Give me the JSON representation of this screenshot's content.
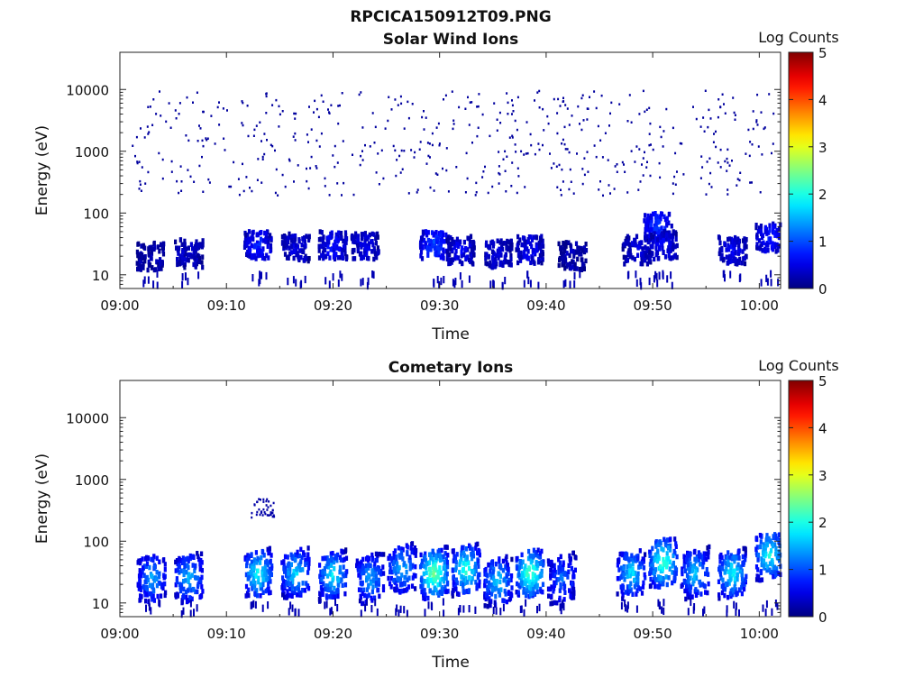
{
  "title": "RPCICA150912T09.PNG",
  "colorbar": {
    "label": "Log Counts",
    "ticks": [
      "0",
      "1",
      "2",
      "3",
      "4",
      "5"
    ],
    "colors": [
      "#00007f",
      "#0000ff",
      "#00ffff",
      "#ffff00",
      "#ff0000",
      "#7f0000"
    ]
  },
  "chart_data": [
    {
      "type": "heatmap",
      "title": "Solar Wind Ions",
      "xlabel": "Time",
      "ylabel": "Energy (eV)",
      "xlim": [
        "09:00",
        "10:02"
      ],
      "ylim": [
        6,
        40000
      ],
      "yscale": "log",
      "xticks": [
        "09:00",
        "09:10",
        "09:20",
        "09:30",
        "09:40",
        "09:50",
        "10:00"
      ],
      "yticks": [
        "10",
        "100",
        "1000",
        "10000"
      ],
      "zrange": [
        0,
        5
      ],
      "clusters": [
        {
          "t": 2.9,
          "e": 20,
          "v": 0.3
        },
        {
          "t": 6.5,
          "e": 22,
          "v": 0.4
        },
        {
          "t": 13.0,
          "e": 30,
          "v": 0.8
        },
        {
          "t": 16.5,
          "e": 28,
          "v": 0.5
        },
        {
          "t": 20.0,
          "e": 30,
          "v": 0.7
        },
        {
          "t": 23.0,
          "e": 28,
          "v": 0.5
        },
        {
          "t": 29.5,
          "e": 30,
          "v": 1.0
        },
        {
          "t": 32.0,
          "e": 25,
          "v": 0.6
        },
        {
          "t": 35.5,
          "e": 22,
          "v": 0.5
        },
        {
          "t": 38.5,
          "e": 25,
          "v": 0.6
        },
        {
          "t": 42.5,
          "e": 20,
          "v": 0.3
        },
        {
          "t": 48.5,
          "e": 25,
          "v": 0.5
        },
        {
          "t": 50.5,
          "e": 60,
          "v": 1.0
        },
        {
          "t": 51.0,
          "e": 30,
          "v": 0.6
        },
        {
          "t": 57.5,
          "e": 25,
          "v": 0.6
        },
        {
          "t": 61.0,
          "e": 40,
          "v": 0.8
        }
      ]
    },
    {
      "type": "heatmap",
      "title": "Cometary Ions",
      "xlabel": "Time",
      "ylabel": "Energy (eV)",
      "xlim": [
        "09:00",
        "10:02"
      ],
      "ylim": [
        6,
        40000
      ],
      "yscale": "log",
      "xticks": [
        "09:00",
        "09:10",
        "09:20",
        "09:30",
        "09:40",
        "09:50",
        "10:00"
      ],
      "yticks": [
        "10",
        "100",
        "1000",
        "10000"
      ],
      "zrange": [
        0,
        5
      ],
      "clusters": [
        {
          "t": 3.0,
          "e": 25,
          "v": 1.5
        },
        {
          "t": 6.5,
          "e": 25,
          "v": 1.6
        },
        {
          "t": 13.0,
          "e": 30,
          "v": 2.0
        },
        {
          "t": 16.5,
          "e": 30,
          "v": 1.8
        },
        {
          "t": 20.0,
          "e": 28,
          "v": 1.9
        },
        {
          "t": 23.5,
          "e": 25,
          "v": 1.5
        },
        {
          "t": 26.5,
          "e": 35,
          "v": 1.6
        },
        {
          "t": 29.5,
          "e": 30,
          "v": 2.6
        },
        {
          "t": 32.5,
          "e": 35,
          "v": 2.2
        },
        {
          "t": 35.5,
          "e": 22,
          "v": 1.7
        },
        {
          "t": 38.5,
          "e": 30,
          "v": 2.4
        },
        {
          "t": 41.5,
          "e": 25,
          "v": 1.2
        },
        {
          "t": 48.0,
          "e": 30,
          "v": 1.8
        },
        {
          "t": 51.0,
          "e": 45,
          "v": 2.3
        },
        {
          "t": 54.0,
          "e": 30,
          "v": 1.7
        },
        {
          "t": 57.5,
          "e": 30,
          "v": 2.0
        },
        {
          "t": 61.0,
          "e": 60,
          "v": 2.1
        }
      ]
    }
  ]
}
